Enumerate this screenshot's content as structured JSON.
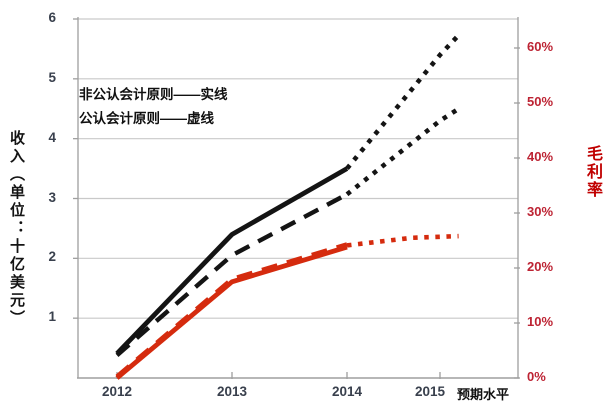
{
  "legend": {
    "line1": "非公认会计原则——实线",
    "line2": "公认会计原则——虚线"
  },
  "axes": {
    "left_title": "收入（单位：十亿美元）",
    "right_title": "毛利率",
    "left_ticks": [
      {
        "value": 6,
        "label": "6"
      },
      {
        "value": 5,
        "label": "5"
      },
      {
        "value": 4,
        "label": "4"
      },
      {
        "value": 3,
        "label": "3"
      },
      {
        "value": 2,
        "label": "2"
      },
      {
        "value": 1,
        "label": "1"
      }
    ],
    "right_ticks": [
      {
        "value": 60,
        "label": "60%"
      },
      {
        "value": 50,
        "label": "50%"
      },
      {
        "value": 40,
        "label": "40%"
      },
      {
        "value": 30,
        "label": "30%"
      },
      {
        "value": 20,
        "label": "20%"
      },
      {
        "value": 10,
        "label": "10%"
      },
      {
        "value": 0,
        "label": "0%"
      }
    ],
    "x_labels": [
      "2012",
      "2013",
      "2014",
      "2015",
      "预期水平"
    ]
  },
  "colors": {
    "line_black": "#141414",
    "line_red": "#d52b0e",
    "right_axis_text": "#bd2333",
    "left_axis_text": "#39404d",
    "grid": "#c9c9c9",
    "axis": "#9f9f9f"
  },
  "chart_data": {
    "type": "line",
    "x_labels": [
      "2012",
      "2013",
      "2014",
      "2015",
      "预期水平"
    ],
    "forecast_note": "虚点线段（2014之后）为预期水平/预测值",
    "left_axis": {
      "title": "收入（单位：十亿美元）",
      "range": [
        0,
        6
      ],
      "ticks": [
        1,
        2,
        3,
        4,
        5,
        6
      ]
    },
    "right_axis": {
      "title": "毛利率",
      "range_pct": [
        0,
        65
      ],
      "ticks_pct": [
        0,
        10,
        20,
        30,
        40,
        50,
        60
      ]
    },
    "series": [
      {
        "name": "非公认会计原则收入（实线）",
        "axis": "left",
        "color": "#141414",
        "style": "solid",
        "x": [
          2012,
          2013,
          2014
        ],
        "values": [
          0.41,
          2.4,
          3.5
        ]
      },
      {
        "name": "非公认会计原则收入预期（点线）",
        "axis": "left",
        "color": "#141414",
        "style": "dotted",
        "x": [
          2014,
          2015,
          2015.2
        ],
        "values": [
          3.5,
          5.4,
          5.73
        ]
      },
      {
        "name": "公认会计原则收入（虚线）",
        "axis": "left",
        "color": "#141414",
        "style": "dashed",
        "x": [
          2012,
          2013,
          2014
        ],
        "values": [
          0.38,
          2.05,
          3.07
        ]
      },
      {
        "name": "公认会计原则收入预期（点线）",
        "axis": "left",
        "color": "#141414",
        "style": "dotted",
        "x": [
          2014,
          2015,
          2015.2
        ],
        "values": [
          3.07,
          4.3,
          4.5
        ]
      },
      {
        "name": "非公认会计原则毛利率（实线）",
        "axis": "right",
        "color": "#d52b0e",
        "style": "solid",
        "x": [
          2012,
          2013,
          2014
        ],
        "values": [
          0,
          17.5,
          23.8
        ]
      },
      {
        "name": "公认会计原则毛利率（虚线）",
        "axis": "right",
        "color": "#d52b0e",
        "style": "dashed",
        "x": [
          2012,
          2013,
          2014
        ],
        "values": [
          0.3,
          18.0,
          24.3
        ]
      },
      {
        "name": "毛利率预期（点线）",
        "axis": "right",
        "color": "#d52b0e",
        "style": "dotted",
        "x": [
          2014,
          2014.7,
          2015.2
        ],
        "values": [
          24.1,
          25.5,
          25.8
        ]
      }
    ]
  }
}
